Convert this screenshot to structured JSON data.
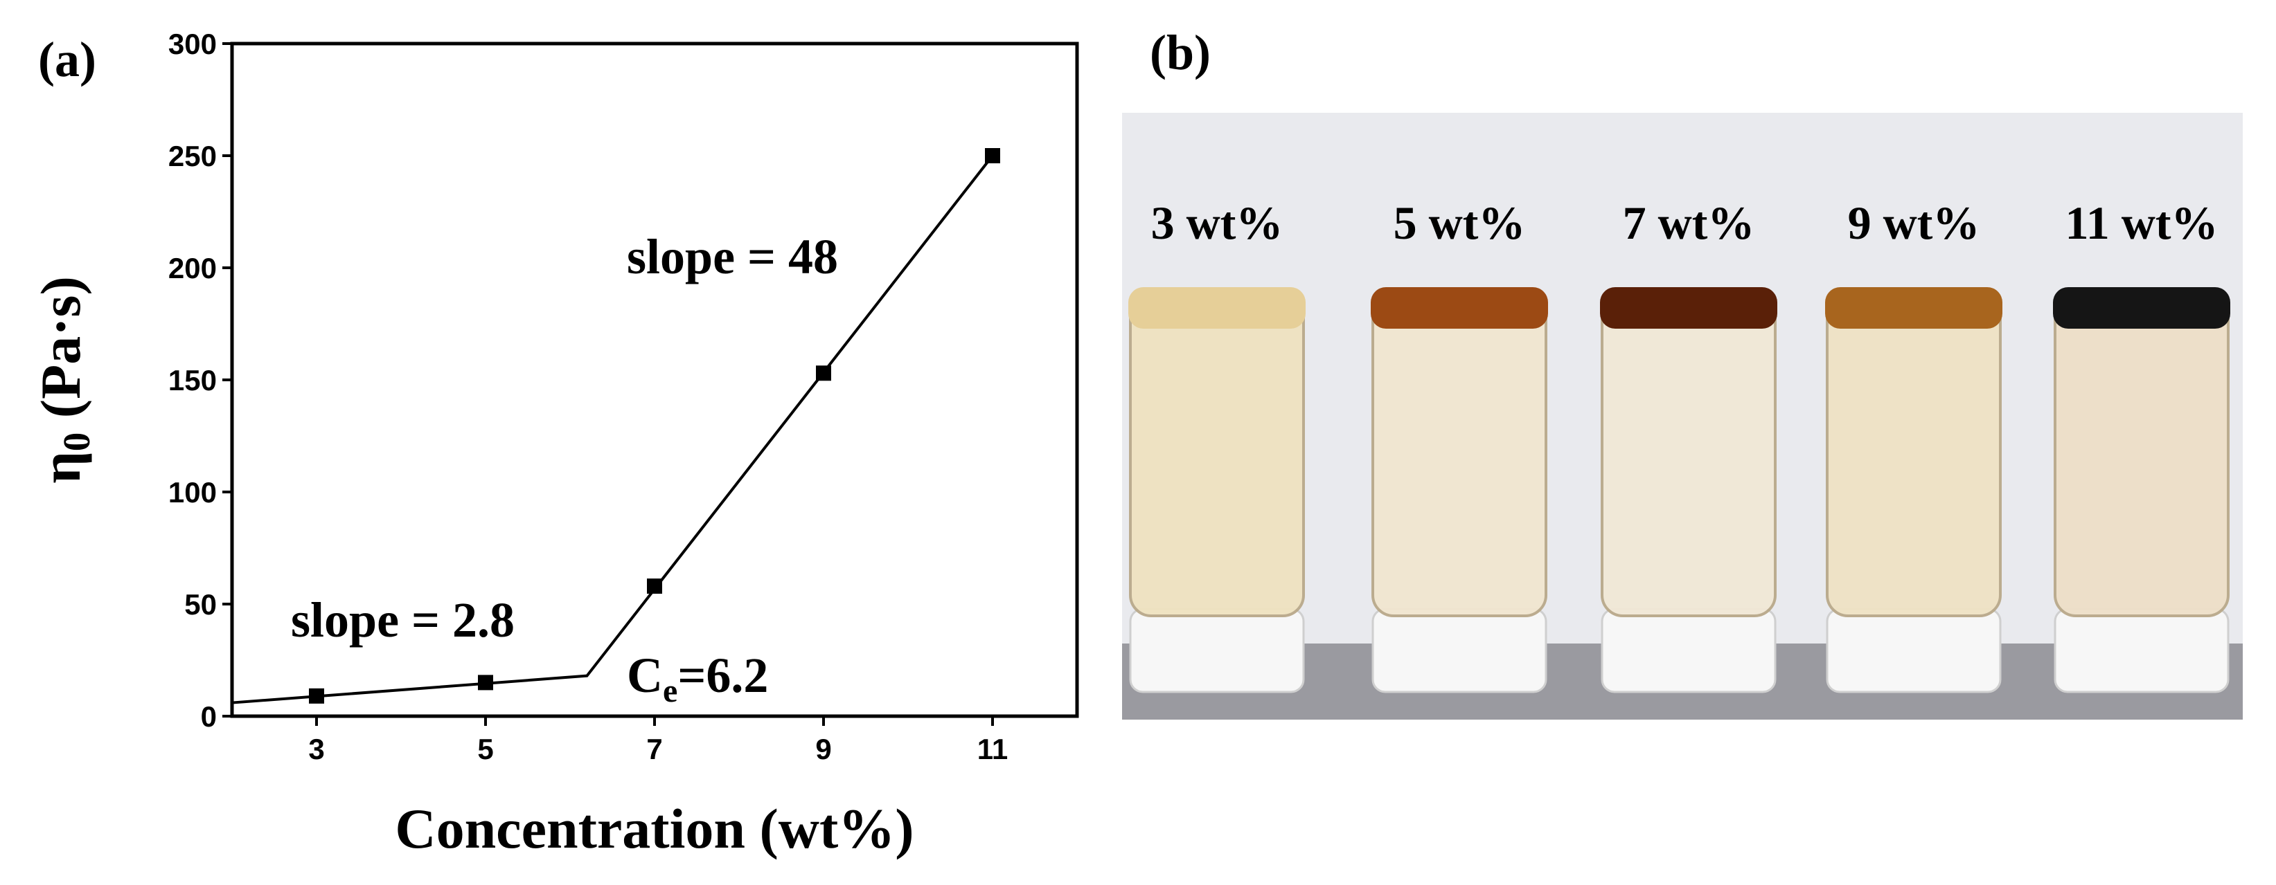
{
  "chart_data": {
    "type": "scatter",
    "panel_label": "(a)",
    "xlabel": "Concentration (wt%)",
    "ylabel": {
      "symbol": "η",
      "sub": "0",
      "rest": " (Pa·s)"
    },
    "x": [
      3,
      5,
      7,
      9,
      11
    ],
    "values": [
      9,
      15,
      58,
      153,
      250
    ],
    "color": "#000000",
    "fit_line": {
      "x": [
        2,
        6.2,
        11
      ],
      "y": [
        6,
        18,
        250
      ]
    },
    "xlim": [
      2,
      12
    ],
    "xticks": [
      3,
      5,
      7,
      9,
      11
    ],
    "ylim": [
      0,
      300
    ],
    "yticks": [
      0,
      50,
      100,
      150,
      200,
      250,
      300
    ],
    "annotations": {
      "slope_high": "slope = 48",
      "slope_low": "slope = 2.8",
      "ce": {
        "text": "C",
        "sub": "e",
        "rest": "=6.2"
      }
    }
  },
  "photo": {
    "panel_label": "(b)",
    "labels": [
      "3 wt%",
      "5 wt%",
      "7 wt%",
      "9 wt%",
      "11 wt%"
    ]
  }
}
